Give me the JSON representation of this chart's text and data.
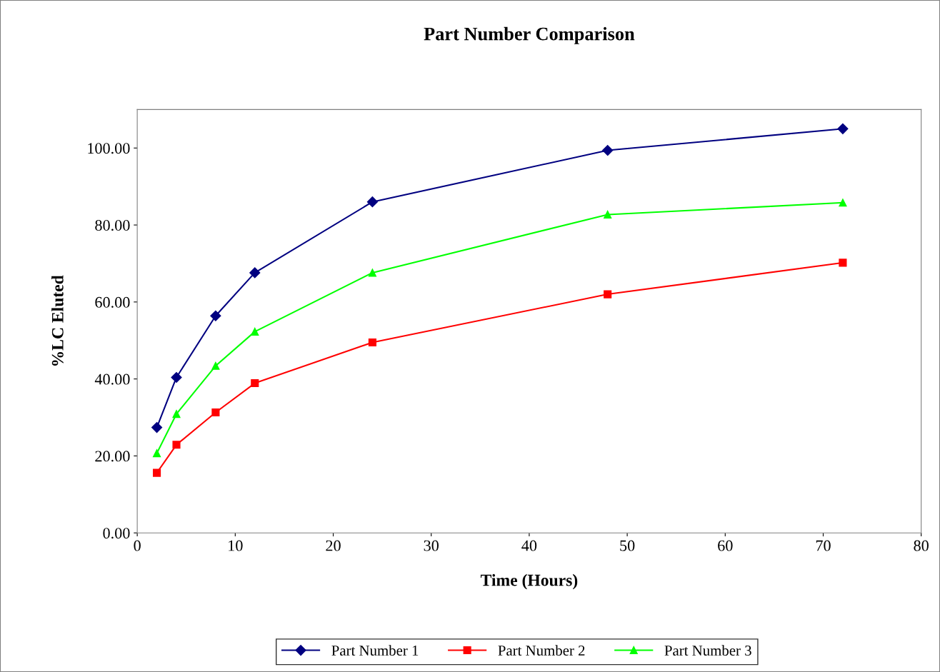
{
  "chart_data": {
    "type": "line",
    "title": "Part Number Comparison",
    "xlabel": "Time (Hours)",
    "ylabel": "%LC Eluted",
    "x": [
      2,
      4,
      8,
      12,
      24,
      48,
      72
    ],
    "series": [
      {
        "name": "Part Number 1",
        "color": "#000080",
        "marker": "diamond",
        "values": [
          27.4,
          40.4,
          56.4,
          67.6,
          86.0,
          99.4,
          105.0
        ]
      },
      {
        "name": "Part Number 2",
        "color": "#ff0000",
        "marker": "square",
        "values": [
          15.6,
          22.9,
          31.3,
          38.9,
          49.5,
          62.0,
          70.2
        ]
      },
      {
        "name": "Part Number 3",
        "color": "#00ff00",
        "marker": "triangle",
        "values": [
          20.7,
          30.9,
          43.4,
          52.3,
          67.6,
          82.7,
          85.8
        ]
      }
    ],
    "xlim": [
      0,
      80
    ],
    "xticks": [
      0,
      10,
      20,
      30,
      40,
      50,
      60,
      70,
      80
    ],
    "ylim": [
      0,
      110
    ],
    "yticks": [
      {
        "value": 0,
        "label": "0.00"
      },
      {
        "value": 20,
        "label": "20.00"
      },
      {
        "value": 40,
        "label": "40.00"
      },
      {
        "value": 60,
        "label": "60.00"
      },
      {
        "value": 80,
        "label": "80.00"
      },
      {
        "value": 100,
        "label": "100.00"
      }
    ],
    "grid": false,
    "legend": "bottom",
    "line_style": "solid"
  }
}
